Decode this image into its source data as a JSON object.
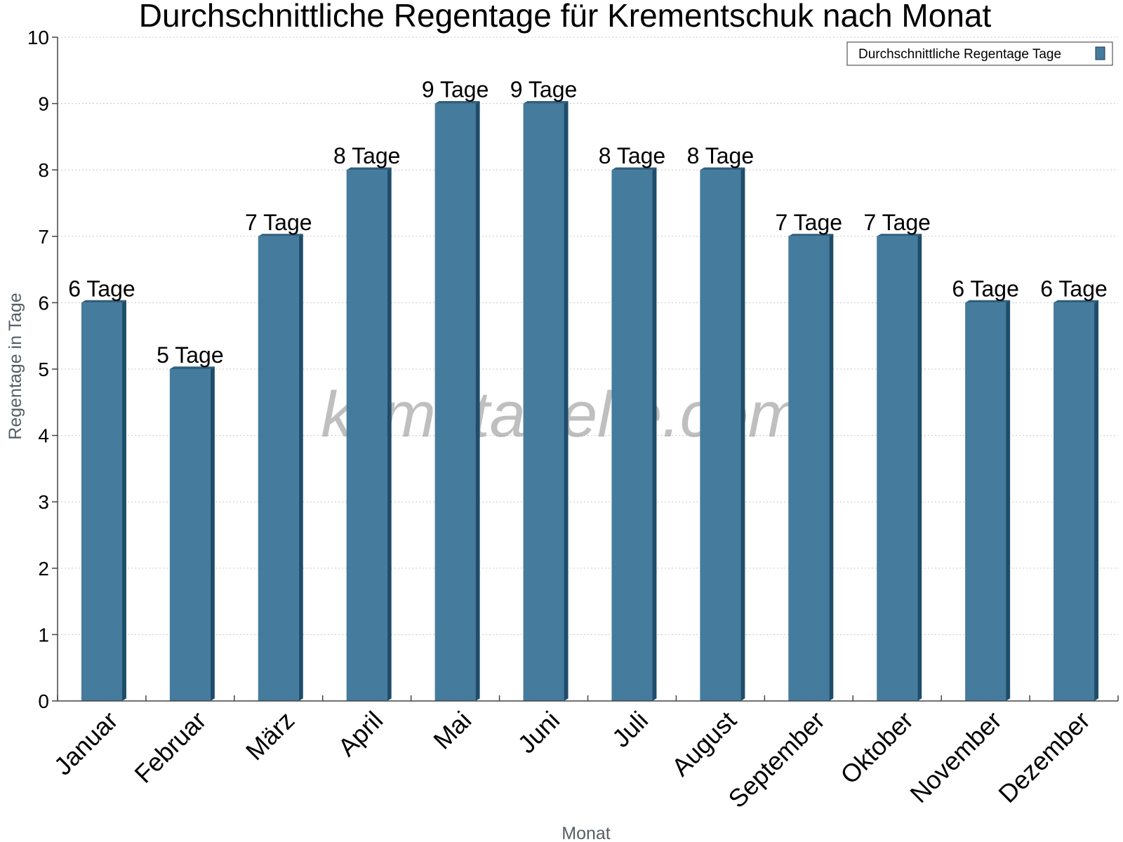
{
  "chart_data": {
    "type": "bar",
    "title": "Durchschnittliche Regentage für Krementschuk nach Monat",
    "xlabel": "Monat",
    "ylabel": "Regentage in Tage",
    "categories": [
      "Januar",
      "Februar",
      "März",
      "April",
      "Mai",
      "Juni",
      "Juli",
      "August",
      "September",
      "Oktober",
      "November",
      "Dezember"
    ],
    "series": [
      {
        "name": "Durchschnittliche Regentage Tage",
        "values": [
          6,
          5,
          7,
          8,
          9,
          9,
          8,
          8,
          7,
          7,
          6,
          6
        ],
        "data_labels": [
          "6 Tage",
          "5 Tage",
          "7 Tage",
          "8 Tage",
          "9 Tage",
          "9 Tage",
          "8 Tage",
          "8 Tage",
          "7 Tage",
          "7 Tage",
          "6 Tage",
          "6 Tage"
        ]
      }
    ],
    "ylim": [
      0,
      10
    ],
    "yticks": [
      "0",
      "1",
      "2",
      "3",
      "4",
      "5",
      "6",
      "7",
      "8",
      "9",
      "10"
    ],
    "grid": true,
    "legend_position": "top-right",
    "colors": {
      "bar": "#457b9d",
      "bar_side": "#1e4d6b",
      "bar_top": "#2f5f7f"
    }
  },
  "watermark": "klimatabelle.com"
}
